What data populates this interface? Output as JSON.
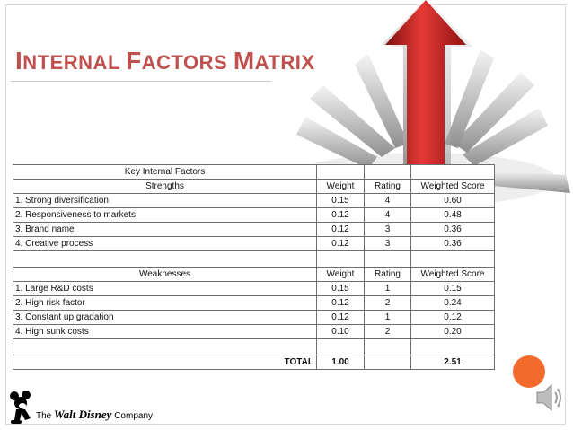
{
  "slide": {
    "title_parts": [
      {
        "big": "I",
        "rest": "NTERNAL "
      },
      {
        "big": "F",
        "rest": "ACTORS "
      },
      {
        "big": "M",
        "rest": "ATRIX"
      }
    ]
  },
  "table": {
    "header": "Key Internal Factors",
    "strengths": {
      "heading": "Strengths",
      "columns": [
        "Weight",
        "Rating",
        "Weighted Score"
      ],
      "rows": [
        {
          "factor": "1. Strong diversification",
          "weight": "0.15",
          "rating": "4",
          "score": "0.60"
        },
        {
          "factor": "2. Responsiveness to markets",
          "weight": "0.12",
          "rating": "4",
          "score": "0.48"
        },
        {
          "factor": "3. Brand name",
          "weight": "0.12",
          "rating": "3",
          "score": "0.36"
        },
        {
          "factor": "4. Creative process",
          "weight": "0.12",
          "rating": "3",
          "score": "0.36"
        }
      ]
    },
    "weaknesses": {
      "heading": "Weaknesses",
      "columns": [
        "Weight",
        "Rating",
        "Weighted Score"
      ],
      "rows": [
        {
          "factor": "1. Large R&D costs",
          "weight": "0.15",
          "rating": "1",
          "score": "0.15"
        },
        {
          "factor": "2. High risk factor",
          "weight": "0.12",
          "rating": "2",
          "score": "0.24"
        },
        {
          "factor": "3. Constant up gradation",
          "weight": "0.12",
          "rating": "1",
          "score": "0.12"
        },
        {
          "factor": "4. High sunk costs",
          "weight": "0.10",
          "rating": "2",
          "score": "0.20"
        }
      ]
    },
    "total": {
      "label": "TOTAL",
      "weight": "1.00",
      "score": "2.51"
    }
  },
  "logo": {
    "prefix": "The",
    "brand": "Walt Disney",
    "suffix": "Company"
  },
  "colors": {
    "title": "#c0504d",
    "accent_circle": "#f26b2b",
    "arrow": "#c62828"
  },
  "icons": {
    "audio": "speaker-icon",
    "arrow": "red-arrow-burst-image",
    "mascot": "mickey-logo-icon"
  }
}
